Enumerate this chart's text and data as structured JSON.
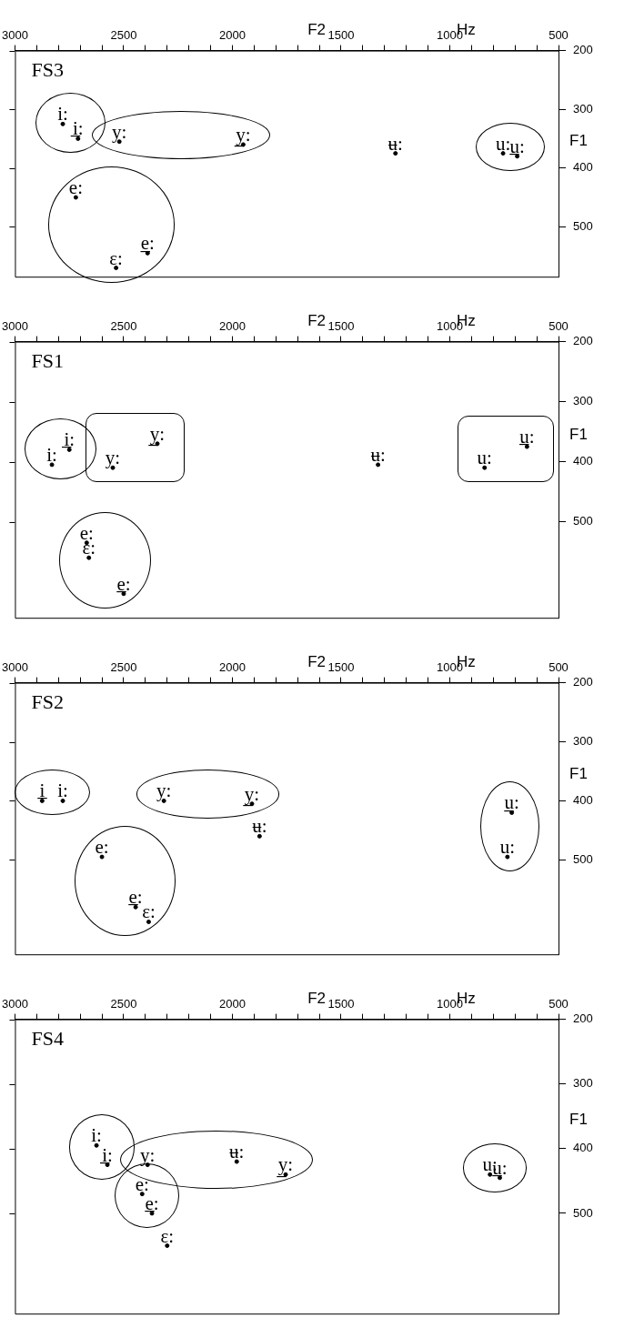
{
  "chart_data": [
    {
      "type": "scatter",
      "title": "FS3",
      "xlabel": "F2",
      "ylabel": "F1",
      "annotations": [
        "Hz"
      ],
      "marker": "circle",
      "xlim": [
        3000,
        500
      ],
      "ylim": [
        585,
        200
      ],
      "xticks": [
        3000,
        {
          "value": 2900,
          "label": null
        },
        {
          "value": 2800,
          "label": null
        },
        {
          "value": 2700,
          "label": null
        },
        {
          "value": 2600,
          "label": null
        },
        2500,
        {
          "value": 2400,
          "label": null
        },
        {
          "value": 2300,
          "label": null
        },
        {
          "value": 2200,
          "label": null
        },
        {
          "value": 2100,
          "label": null
        },
        2000,
        {
          "value": 1900,
          "label": null
        },
        {
          "value": 1800,
          "label": null
        },
        {
          "value": 1700,
          "label": null
        },
        {
          "value": 1600,
          "label": null
        },
        1500,
        {
          "value": 1400,
          "label": null
        },
        {
          "value": 1300,
          "label": null
        },
        {
          "value": 1200,
          "label": null
        },
        {
          "value": 1100,
          "label": null
        },
        1000,
        {
          "value": 900,
          "label": null
        },
        {
          "value": 800,
          "label": null
        },
        {
          "value": 700,
          "label": null
        },
        {
          "value": 600,
          "label": null
        },
        500
      ],
      "yticks": [
        200,
        300,
        400,
        500
      ],
      "series": [
        {
          "color": "#000000",
          "x": [
            2780,
            2710,
            2520,
            1950,
            1250,
            755,
            690,
            2720,
            2390,
            2535
          ],
          "values": [
            325,
            350,
            355,
            360,
            375,
            375,
            380,
            450,
            545,
            570
          ],
          "value_labels": [
            "i:",
            "i̲:",
            "y:",
            "y̲:",
            "ʉ:",
            "u:",
            "u̲:",
            "e:",
            "e̲:",
            "ɛ:"
          ]
        }
      ]
    },
    {
      "type": "scatter",
      "title": "FS1",
      "xlabel": "F2",
      "ylabel": "F1",
      "annotations": [
        "Hz"
      ],
      "marker": "circle",
      "xlim": [
        3000,
        500
      ],
      "ylim": [
        660,
        200
      ],
      "xticks": [
        3000,
        {
          "value": 2900,
          "label": null
        },
        {
          "value": 2800,
          "label": null
        },
        {
          "value": 2700,
          "label": null
        },
        {
          "value": 2600,
          "label": null
        },
        2500,
        {
          "value": 2400,
          "label": null
        },
        {
          "value": 2300,
          "label": null
        },
        {
          "value": 2200,
          "label": null
        },
        {
          "value": 2100,
          "label": null
        },
        2000,
        {
          "value": 1900,
          "label": null
        },
        {
          "value": 1800,
          "label": null
        },
        {
          "value": 1700,
          "label": null
        },
        {
          "value": 1600,
          "label": null
        },
        1500,
        {
          "value": 1400,
          "label": null
        },
        {
          "value": 1300,
          "label": null
        },
        {
          "value": 1200,
          "label": null
        },
        {
          "value": 1100,
          "label": null
        },
        1000,
        {
          "value": 900,
          "label": null
        },
        {
          "value": 800,
          "label": null
        },
        {
          "value": 700,
          "label": null
        },
        {
          "value": 600,
          "label": null
        },
        500
      ],
      "yticks": [
        200,
        300,
        400,
        500
      ],
      "series": [
        {
          "color": "#000000",
          "x": [
            2830,
            2750,
            2550,
            2345,
            1330,
            840,
            645,
            2670,
            2660,
            2500
          ],
          "values": [
            405,
            380,
            410,
            370,
            405,
            410,
            375,
            535,
            560,
            620
          ],
          "value_labels": [
            "i:",
            "i̲:",
            "y:",
            "y̲:",
            "ʉ:",
            "u:",
            "u̲:",
            "e:",
            "ɛ:",
            "e̲:"
          ]
        }
      ]
    },
    {
      "type": "scatter",
      "title": "FS2",
      "xlabel": "F2",
      "ylabel": "F1",
      "annotations": [
        "Hz"
      ],
      "marker": "circle",
      "xlim": [
        3000,
        500
      ],
      "ylim": [
        660,
        200
      ],
      "xticks": [
        3000,
        {
          "value": 2900,
          "label": null
        },
        {
          "value": 2800,
          "label": null
        },
        {
          "value": 2700,
          "label": null
        },
        {
          "value": 2600,
          "label": null
        },
        2500,
        {
          "value": 2400,
          "label": null
        },
        {
          "value": 2300,
          "label": null
        },
        {
          "value": 2200,
          "label": null
        },
        {
          "value": 2100,
          "label": null
        },
        2000,
        {
          "value": 1900,
          "label": null
        },
        {
          "value": 1800,
          "label": null
        },
        {
          "value": 1700,
          "label": null
        },
        {
          "value": 1600,
          "label": null
        },
        1500,
        {
          "value": 1400,
          "label": null
        },
        {
          "value": 1300,
          "label": null
        },
        {
          "value": 1200,
          "label": null
        },
        {
          "value": 1100,
          "label": null
        },
        1000,
        {
          "value": 900,
          "label": null
        },
        {
          "value": 800,
          "label": null
        },
        {
          "value": 700,
          "label": null
        },
        {
          "value": 600,
          "label": null
        },
        500
      ],
      "yticks": [
        200,
        300,
        400,
        500
      ],
      "series": [
        {
          "color": "#000000",
          "x": [
            2875,
            2780,
            2315,
            1910,
            1875,
            715,
            735,
            2600,
            2445,
            2385
          ],
          "values": [
            400,
            400,
            400,
            405,
            460,
            420,
            495,
            495,
            580,
            605
          ],
          "value_labels": [
            "i̲",
            "i:",
            "y:",
            "y̲:",
            "ʉ:",
            "u̲:",
            "u:",
            "e:",
            "e̲:",
            "ɛ:"
          ]
        }
      ]
    },
    {
      "type": "scatter",
      "title": "FS4",
      "xlabel": "F2",
      "ylabel": "F1",
      "annotations": [
        "Hz"
      ],
      "marker": "circle",
      "xlim": [
        3000,
        500
      ],
      "ylim": [
        655,
        200
      ],
      "xticks": [
        3000,
        {
          "value": 2900,
          "label": null
        },
        {
          "value": 2800,
          "label": null
        },
        {
          "value": 2700,
          "label": null
        },
        {
          "value": 2600,
          "label": null
        },
        2500,
        {
          "value": 2400,
          "label": null
        },
        {
          "value": 2300,
          "label": null
        },
        {
          "value": 2200,
          "label": null
        },
        {
          "value": 2100,
          "label": null
        },
        2000,
        {
          "value": 1900,
          "label": null
        },
        {
          "value": 1800,
          "label": null
        },
        {
          "value": 1700,
          "label": null
        },
        {
          "value": 1600,
          "label": null
        },
        1500,
        {
          "value": 1400,
          "label": null
        },
        {
          "value": 1300,
          "label": null
        },
        {
          "value": 1200,
          "label": null
        },
        {
          "value": 1100,
          "label": null
        },
        1000,
        {
          "value": 900,
          "label": null
        },
        {
          "value": 800,
          "label": null
        },
        {
          "value": 700,
          "label": null
        },
        {
          "value": 600,
          "label": null
        },
        500
      ],
      "yticks": [
        200,
        300,
        400,
        500
      ],
      "series": [
        {
          "color": "#000000",
          "x": [
            2625,
            2575,
            2390,
            1980,
            1755,
            2415,
            2370,
            2300,
            815,
            770
          ],
          "values": [
            395,
            425,
            425,
            420,
            440,
            470,
            500,
            550,
            440,
            445
          ],
          "value_labels": [
            "i:",
            "i̲:",
            "y:",
            "ʉ:",
            "y̲:",
            "e:",
            "e̲:",
            "ɛ:",
            "u:",
            "u̲:"
          ]
        }
      ]
    }
  ]
}
